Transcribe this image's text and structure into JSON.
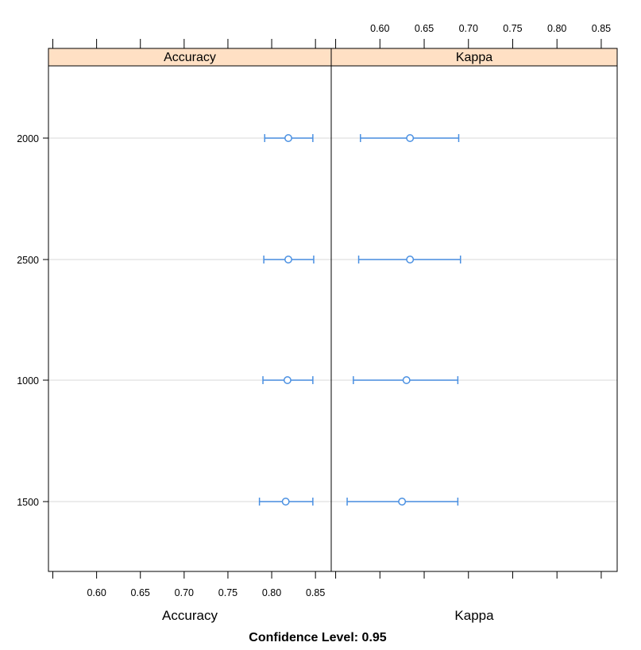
{
  "chart_data": {
    "type": "dotplot-with-intervals",
    "footer": "Confidence Level: 0.95",
    "categories": [
      "2000",
      "2500",
      "1000",
      "1500"
    ],
    "shared_x_ticks": [
      "0.60",
      "0.65",
      "0.70",
      "0.75",
      "0.80",
      "0.85"
    ],
    "shared_x_tick_values": [
      0.6,
      0.65,
      0.7,
      0.75,
      0.8,
      0.85
    ],
    "xlim": [
      0.545,
      0.868
    ],
    "colors": {
      "points": "#4a90e2",
      "strip": "#ffe0c4",
      "grid": "#e6e6e6"
    },
    "panels": [
      {
        "name": "Accuracy",
        "xlabel": "Accuracy",
        "estimates": [
          {
            "category": "2000",
            "value": 0.819,
            "lower": 0.792,
            "upper": 0.847
          },
          {
            "category": "2500",
            "value": 0.819,
            "lower": 0.791,
            "upper": 0.848
          },
          {
            "category": "1000",
            "value": 0.818,
            "lower": 0.79,
            "upper": 0.847
          },
          {
            "category": "1500",
            "value": 0.816,
            "lower": 0.786,
            "upper": 0.847
          }
        ]
      },
      {
        "name": "Kappa",
        "xlabel": "Kappa",
        "estimates": [
          {
            "category": "2000",
            "value": 0.634,
            "lower": 0.578,
            "upper": 0.689
          },
          {
            "category": "2500",
            "value": 0.634,
            "lower": 0.576,
            "upper": 0.691
          },
          {
            "category": "1000",
            "value": 0.63,
            "lower": 0.57,
            "upper": 0.688
          },
          {
            "category": "1500",
            "value": 0.625,
            "lower": 0.563,
            "upper": 0.688
          }
        ]
      }
    ]
  }
}
